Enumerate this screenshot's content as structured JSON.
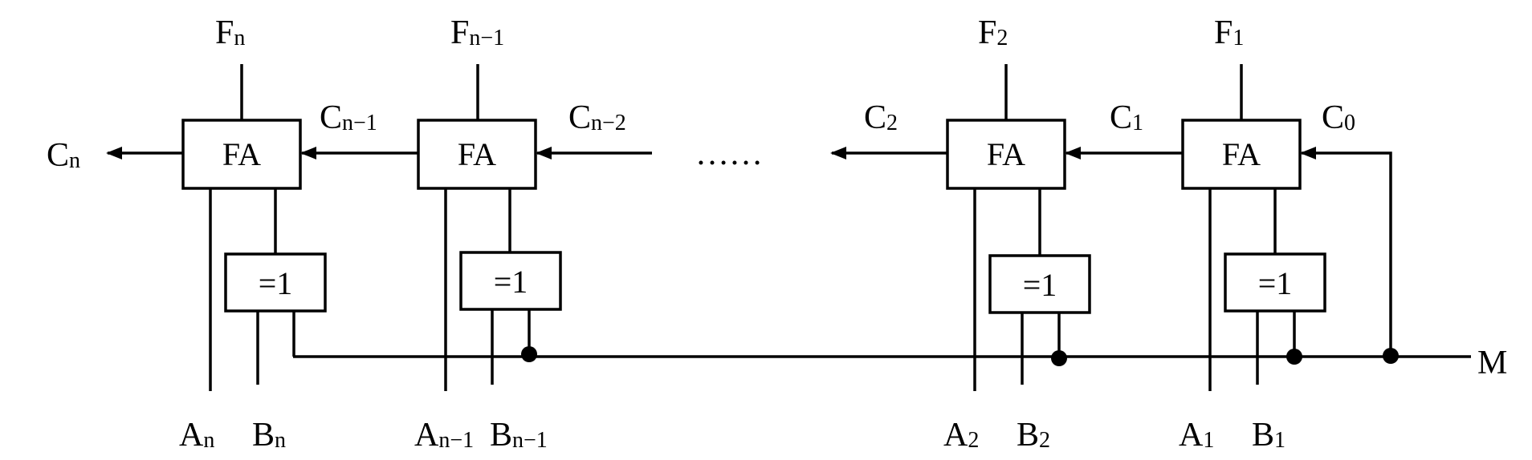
{
  "cells": [
    {
      "id": "n",
      "fa_label": "FA",
      "xor_label": "=1",
      "output": {
        "base": "F",
        "sub": "n"
      },
      "input_a": {
        "base": "A",
        "sub": "n"
      },
      "input_b": {
        "base": "B",
        "sub": "n"
      }
    },
    {
      "id": "n-1",
      "fa_label": "FA",
      "xor_label": "=1",
      "output": {
        "base": "F",
        "sub": "n−1"
      },
      "input_a": {
        "base": "A",
        "sub": "n−1"
      },
      "input_b": {
        "base": "B",
        "sub": "n−1"
      }
    },
    {
      "id": "2",
      "fa_label": "FA",
      "xor_label": "=1",
      "output": {
        "base": "F",
        "sub": "2"
      },
      "input_a": {
        "base": "A",
        "sub": "2"
      },
      "input_b": {
        "base": "B",
        "sub": "2"
      }
    },
    {
      "id": "1",
      "fa_label": "FA",
      "xor_label": "=1",
      "output": {
        "base": "F",
        "sub": "1"
      },
      "input_a": {
        "base": "A",
        "sub": "1"
      },
      "input_b": {
        "base": "B",
        "sub": "1"
      }
    }
  ],
  "carries": {
    "cn": {
      "base": "C",
      "sub": "n"
    },
    "cn1": {
      "base": "C",
      "sub": "n−1"
    },
    "cn2": {
      "base": "C",
      "sub": "n−2"
    },
    "c2": {
      "base": "C",
      "sub": "2"
    },
    "c1": {
      "base": "C",
      "sub": "1"
    },
    "c0": {
      "base": "C",
      "sub": "0"
    }
  },
  "ellipsis": "……",
  "mode_signal": "M"
}
